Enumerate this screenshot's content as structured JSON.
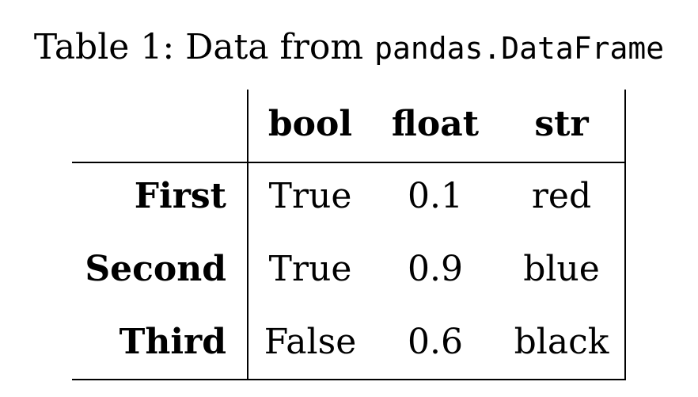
{
  "caption": {
    "prefix": "Table 1: Data from ",
    "code": "pandas.DataFrame"
  },
  "table": {
    "columns": [
      "bool",
      "float",
      "str"
    ],
    "rows": [
      {
        "label": "First",
        "bool": "True",
        "float": "0.1",
        "str": "red"
      },
      {
        "label": "Second",
        "bool": "True",
        "float": "0.9",
        "str": "blue"
      },
      {
        "label": "Third",
        "bool": "False",
        "float": "0.6",
        "str": "black"
      }
    ]
  }
}
